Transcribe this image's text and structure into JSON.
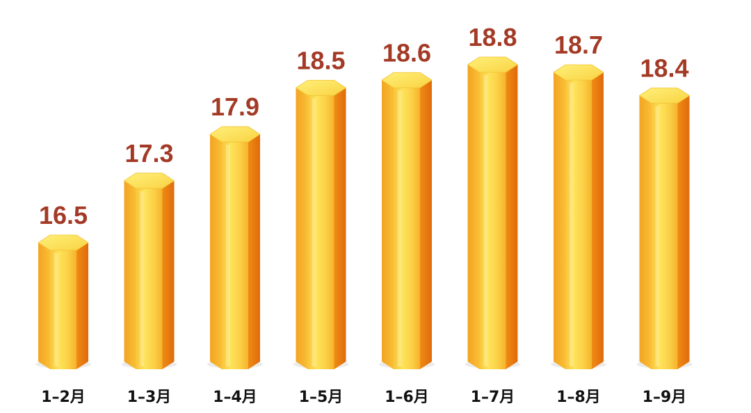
{
  "chart_data": {
    "type": "bar",
    "categories": [
      "1–2月",
      "1–3月",
      "1–4月",
      "1–5月",
      "1–6月",
      "1–7月",
      "1–8月",
      "1–9月"
    ],
    "values": [
      16.5,
      17.3,
      17.9,
      18.5,
      18.6,
      18.8,
      18.7,
      18.4
    ],
    "title": "",
    "xlabel": "",
    "ylabel": "",
    "grid": false,
    "legend": "none",
    "data_labels": [
      "16.5",
      "17.3",
      "17.9",
      "18.5",
      "18.6",
      "18.8",
      "18.7",
      "18.4"
    ],
    "colors": {
      "bar_light": "#fde35a",
      "bar_mid": "#f9b92a",
      "bar_dark": "#e5760e",
      "bar_top": "#fde45c",
      "label": "#a33a26",
      "tick": "#111111"
    }
  }
}
